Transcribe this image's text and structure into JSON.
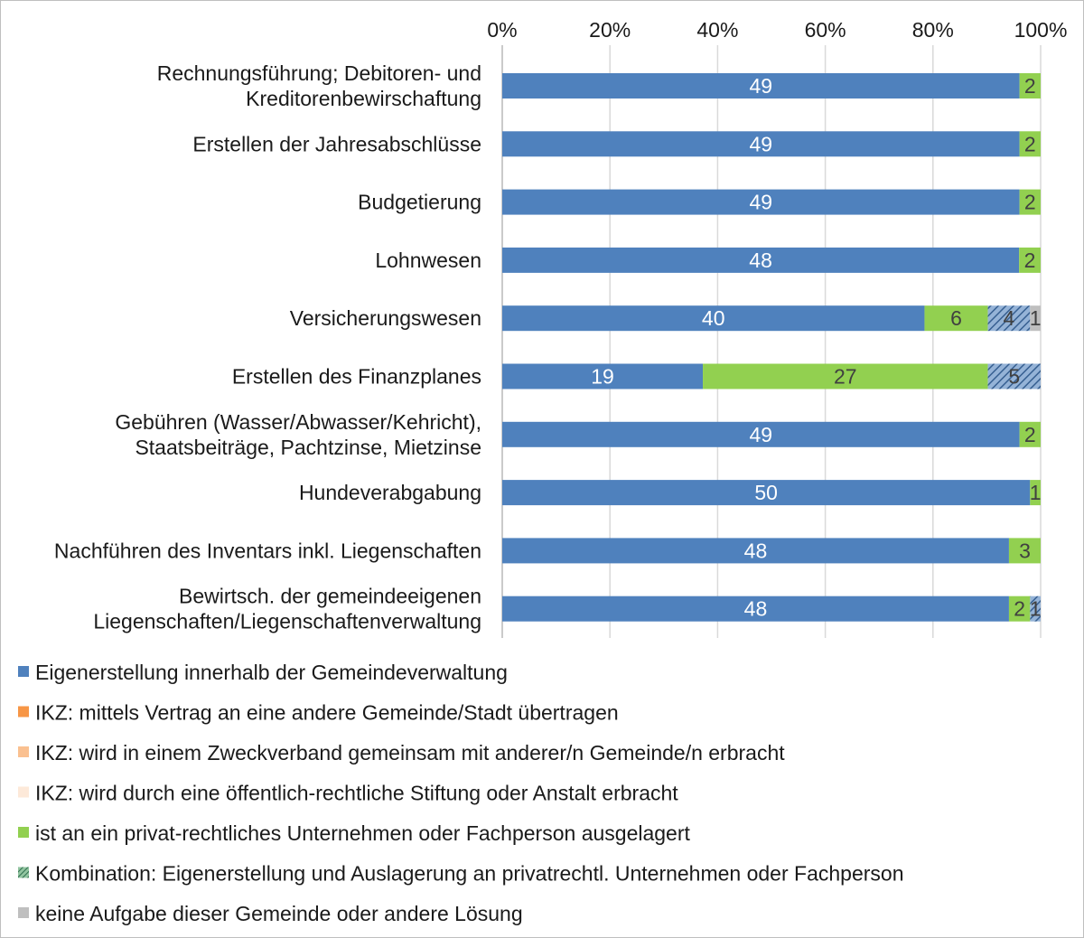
{
  "chart_data": {
    "type": "stacked-bar-100-horizontal",
    "x_axis": {
      "ticks": [
        "0%",
        "20%",
        "40%",
        "60%",
        "80%",
        "100%"
      ],
      "range": [
        0,
        100
      ],
      "gridlines": true,
      "position": "top"
    },
    "categories": [
      [
        "Rechnungsführung; Debitoren- und",
        "Kreditorenbewirschaftung"
      ],
      [
        "Erstellen der Jahresabschlüsse"
      ],
      [
        "Budgetierung"
      ],
      [
        "Lohnwesen"
      ],
      [
        "Versicherungswesen"
      ],
      [
        "Erstellen des Finanzplanes"
      ],
      [
        "Gebühren (Wasser/Abwasser/Kehricht),",
        "Staatsbeiträge, Pachtzinse, Mietzinse"
      ],
      [
        "Hundeverabgabung"
      ],
      [
        "Nachführen des Inventars inkl. Liegenschaften"
      ],
      [
        "Bewirtsch. der gemeindeeigenen",
        "Liegenschaften/Liegenschaftenverwaltung"
      ]
    ],
    "series": [
      {
        "name": "Eigenerstellung innerhalb der Gemeindeverwaltung",
        "color": "#4f81bd",
        "pattern": "solid",
        "label_color": "#ffffff",
        "values": [
          49,
          49,
          49,
          48,
          40,
          19,
          49,
          50,
          48,
          48
        ]
      },
      {
        "name": "IKZ: mittels Vertrag an eine andere Gemeinde/Stadt übertragen",
        "color": "#f79646",
        "pattern": "solid",
        "label_color": "#404040",
        "values": [
          0,
          0,
          0,
          0,
          0,
          0,
          0,
          0,
          0,
          0
        ]
      },
      {
        "name": "IKZ: wird in einem Zweckverband gemeinsam mit anderer/n Gemeinde/n erbracht",
        "color": "#fac090",
        "pattern": "solid",
        "label_color": "#404040",
        "values": [
          0,
          0,
          0,
          0,
          0,
          0,
          0,
          0,
          0,
          0
        ]
      },
      {
        "name": "IKZ: wird durch eine öffentlich-rechtliche Stiftung oder Anstalt erbracht",
        "color": "#fde9d9",
        "pattern": "solid",
        "label_color": "#404040",
        "values": [
          0,
          0,
          0,
          0,
          0,
          0,
          0,
          0,
          0,
          0
        ]
      },
      {
        "name": "ist an ein privat-rechtliches Unternehmen oder Fachperson ausgelagert",
        "color": "#92d050",
        "pattern": "solid",
        "label_color": "#404040",
        "values": [
          2,
          2,
          2,
          2,
          6,
          27,
          2,
          1,
          3,
          2
        ]
      },
      {
        "name": "Kombination: Eigenerstellung und Auslagerung an privatrechtl. Unternehmen oder Fachperson",
        "color": "#4f81bd",
        "pattern": "hatch",
        "label_color": "#404040",
        "values": [
          0,
          0,
          0,
          0,
          4,
          5,
          0,
          0,
          0,
          1
        ]
      },
      {
        "name": "keine Aufgabe dieser Gemeinde oder andere Lösung",
        "color": "#bfbfbf",
        "pattern": "solid",
        "label_color": "#404040",
        "values": [
          0,
          0,
          0,
          0,
          1,
          0,
          0,
          0,
          0,
          0
        ]
      }
    ],
    "legend_position": "bottom"
  }
}
